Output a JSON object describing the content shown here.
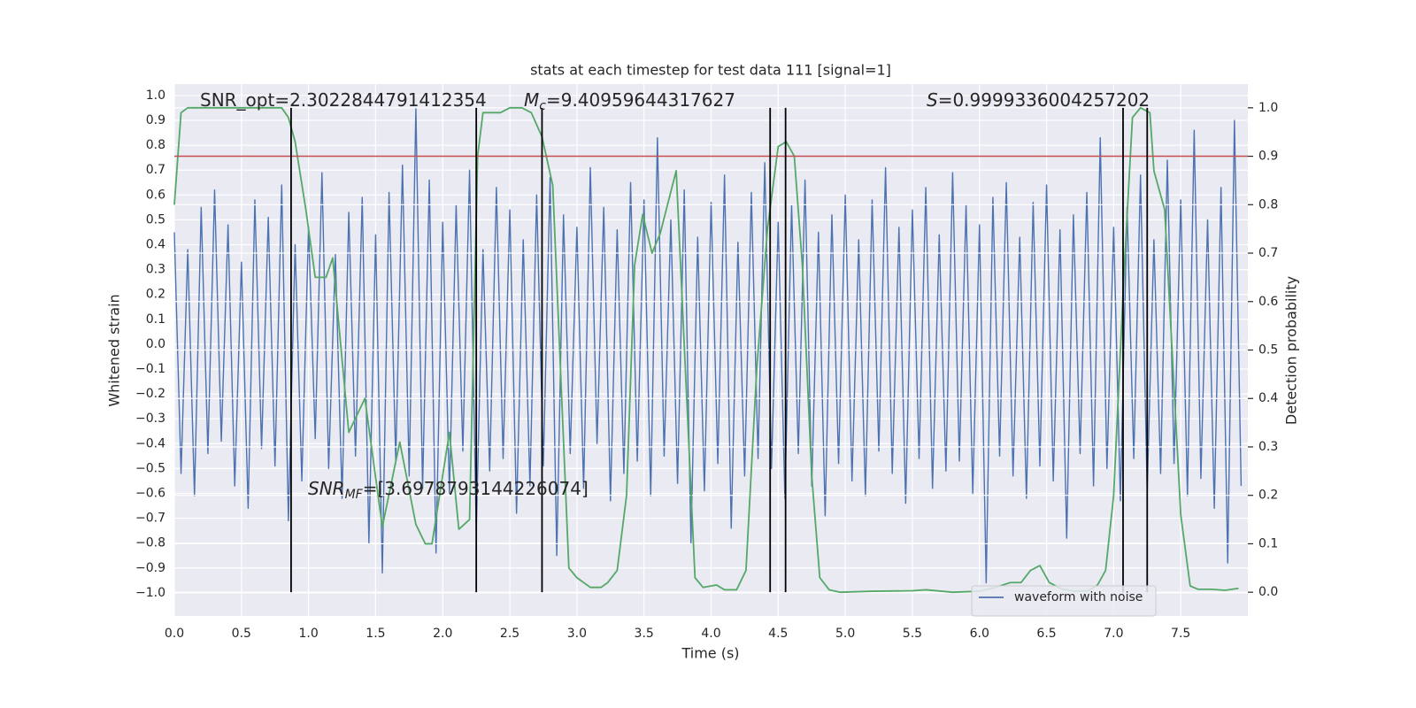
{
  "chart_data": {
    "type": "line",
    "title": "stats at each timestep for test data 111 [signal=1]",
    "xlabel": "Time (s)",
    "ylabel": "Whitened strain",
    "y2label": "Detection probability",
    "xlim": [
      0,
      8
    ],
    "ylim": [
      -1.093,
      1.046
    ],
    "y2lim": [
      -0.049,
      1.049
    ],
    "grid": true,
    "legend": "lower right",
    "xticks": [
      {
        "value": 0,
        "label": "0.0"
      },
      {
        "value": 0.5,
        "label": "0.5"
      },
      {
        "value": 1,
        "label": "1.0"
      },
      {
        "value": 1.5,
        "label": "1.5"
      },
      {
        "value": 2,
        "label": "2.0"
      },
      {
        "value": 2.5,
        "label": "2.5"
      },
      {
        "value": 3,
        "label": "3.0"
      },
      {
        "value": 3.5,
        "label": "3.5"
      },
      {
        "value": 4,
        "label": "4.0"
      },
      {
        "value": 4.5,
        "label": "4.5"
      },
      {
        "value": 5,
        "label": "5.0"
      },
      {
        "value": 5.5,
        "label": "5.5"
      },
      {
        "value": 6,
        "label": "6.0"
      },
      {
        "value": 6.5,
        "label": "6.5"
      },
      {
        "value": 7,
        "label": "7.0"
      },
      {
        "value": 7.5,
        "label": "7.5"
      }
    ],
    "yticks": [
      {
        "value": -1,
        "label": "−1.0"
      },
      {
        "value": -0.9,
        "label": "−0.9"
      },
      {
        "value": -0.8,
        "label": "−0.8"
      },
      {
        "value": -0.7,
        "label": "−0.7"
      },
      {
        "value": -0.6,
        "label": "−0.6"
      },
      {
        "value": -0.5,
        "label": "−0.5"
      },
      {
        "value": -0.4,
        "label": "−0.4"
      },
      {
        "value": -0.3,
        "label": "−0.3"
      },
      {
        "value": -0.2,
        "label": "−0.2"
      },
      {
        "value": -0.1,
        "label": "−0.1"
      },
      {
        "value": 0,
        "label": "0.0"
      },
      0.1,
      0.2,
      0.3,
      0.4,
      0.5,
      0.6,
      0.7,
      0.8,
      0.9,
      {
        "value": 1,
        "label": "1.0"
      }
    ],
    "y2ticks": [
      {
        "value": 0,
        "label": "0.0"
      },
      0.1,
      0.2,
      0.3,
      0.4,
      0.5,
      0.6,
      0.7,
      0.8,
      0.9,
      {
        "value": 1,
        "label": "1.0"
      }
    ],
    "series": [
      {
        "name": "waveform with noise",
        "color": "#4c72b0",
        "axis": "y",
        "x": [
          0,
          0.05,
          0.1,
          0.15,
          0.2,
          0.25,
          0.3,
          0.35,
          0.4,
          0.45,
          0.5,
          0.55,
          0.6,
          0.65,
          0.7,
          0.75,
          0.8,
          0.85,
          0.9,
          0.95,
          1,
          1.05,
          1.1,
          1.15,
          1.2,
          1.25,
          1.3,
          1.35,
          1.4,
          1.45,
          1.5,
          1.55,
          1.6,
          1.65,
          1.7,
          1.75,
          1.8,
          1.85,
          1.9,
          1.95,
          2,
          2.05,
          2.1,
          2.15,
          2.2,
          2.25,
          2.3,
          2.35,
          2.4,
          2.45,
          2.5,
          2.55,
          2.6,
          2.65,
          2.7,
          2.75,
          2.8,
          2.85,
          2.9,
          2.95,
          3,
          3.05,
          3.1,
          3.15,
          3.2,
          3.25,
          3.3,
          3.35,
          3.4,
          3.45,
          3.5,
          3.55,
          3.6,
          3.65,
          3.7,
          3.75,
          3.8,
          3.85,
          3.9,
          3.95,
          4,
          4.05,
          4.1,
          4.15,
          4.2,
          4.25,
          4.3,
          4.35,
          4.4,
          4.45,
          4.5,
          4.55,
          4.6,
          4.65,
          4.7,
          4.75,
          4.8,
          4.85,
          4.9,
          4.95,
          5,
          5.05,
          5.1,
          5.15,
          5.2,
          5.25,
          5.3,
          5.35,
          5.4,
          5.45,
          5.5,
          5.55,
          5.6,
          5.65,
          5.7,
          5.75,
          5.8,
          5.85,
          5.9,
          5.95,
          6,
          6.05,
          6.1,
          6.15,
          6.2,
          6.25,
          6.3,
          6.35,
          6.4,
          6.45,
          6.5,
          6.55,
          6.6,
          6.65,
          6.7,
          6.75,
          6.8,
          6.85,
          6.9,
          6.95,
          7,
          7.05,
          7.1,
          7.15,
          7.2,
          7.25,
          7.3,
          7.35,
          7.4,
          7.45,
          7.5,
          7.55,
          7.6,
          7.65,
          7.7,
          7.75,
          7.8,
          7.85,
          7.9,
          7.95
        ],
        "values": [
          0.45,
          -0.52,
          0.38,
          -0.61,
          0.55,
          -0.44,
          0.62,
          -0.39,
          0.48,
          -0.57,
          0.33,
          -0.66,
          0.58,
          -0.42,
          0.51,
          -0.49,
          0.64,
          -0.71,
          0.4,
          -0.55,
          0.47,
          -0.38,
          0.69,
          -0.5,
          0.36,
          -0.62,
          0.53,
          -0.45,
          0.59,
          -0.8,
          0.44,
          -0.92,
          0.61,
          -0.47,
          0.72,
          -0.53,
          0.95,
          -0.58,
          0.66,
          -0.84,
          0.49,
          -0.6,
          0.56,
          -0.43,
          0.7,
          -0.75,
          0.38,
          -0.51,
          0.63,
          -0.46,
          0.54,
          -0.68,
          0.42,
          -0.57,
          0.6,
          -0.49,
          0.67,
          -0.85,
          0.52,
          -0.44,
          0.47,
          -0.58,
          0.71,
          -0.4,
          0.55,
          -0.63,
          0.46,
          -0.52,
          0.65,
          -0.47,
          0.58,
          -0.61,
          0.83,
          -0.45,
          0.5,
          -0.56,
          0.62,
          -0.8,
          0.43,
          -0.59,
          0.57,
          -0.48,
          0.68,
          -0.74,
          0.41,
          -0.53,
          0.61,
          -0.46,
          0.73,
          -0.5,
          0.49,
          -0.62,
          0.56,
          -0.44,
          0.66,
          -0.57,
          0.45,
          -0.69,
          0.52,
          -0.48,
          0.6,
          -0.55,
          0.42,
          -0.61,
          0.58,
          -0.43,
          0.71,
          -0.52,
          0.47,
          -0.64,
          0.54,
          -0.46,
          0.63,
          -0.58,
          0.44,
          -0.51,
          0.69,
          -0.47,
          0.56,
          -0.6,
          0.48,
          -0.96,
          0.59,
          -0.45,
          0.65,
          -0.53,
          0.43,
          -0.62,
          0.57,
          -0.49,
          0.64,
          -0.55,
          0.46,
          -0.78,
          0.52,
          -0.44,
          0.61,
          -0.57,
          0.83,
          -0.5,
          0.47,
          -0.63,
          0.55,
          -0.46,
          0.68,
          -0.59,
          0.42,
          -0.52,
          0.74,
          -0.48,
          0.58,
          -0.61,
          0.86,
          -0.54,
          0.5,
          -0.66,
          0.63,
          -0.88,
          0.9,
          -0.57
        ]
      },
      {
        "color": "#55a868",
        "axis": "y2",
        "x": [
          0,
          0.05,
          0.1,
          0.2,
          0.3,
          0.4,
          0.5,
          0.6,
          0.7,
          0.8,
          0.85,
          0.9,
          0.98,
          1.05,
          1.13,
          1.18,
          1.3,
          1.42,
          1.55,
          1.68,
          1.8,
          1.87,
          1.92,
          2.05,
          2.12,
          2.2,
          2.26,
          2.3,
          2.43,
          2.5,
          2.59,
          2.66,
          2.74,
          2.82,
          2.94,
          3.0,
          3.1,
          3.18,
          3.23,
          3.3,
          3.37,
          3.43,
          3.49,
          3.56,
          3.62,
          3.74,
          3.88,
          3.94,
          4.04,
          4.1,
          4.19,
          4.26,
          4.34,
          4.42,
          4.5,
          4.56,
          4.62,
          4.68,
          4.75,
          4.81,
          4.88,
          4.96,
          5.2,
          5.5,
          5.6,
          5.8,
          6.0,
          6.12,
          6.23,
          6.31,
          6.38,
          6.45,
          6.52,
          6.61,
          6.71,
          6.81,
          6.88,
          6.94,
          7.0,
          7.08,
          7.14,
          7.2,
          7.27,
          7.3,
          7.38,
          7.5,
          7.57,
          7.63,
          7.73,
          7.83,
          7.93
        ],
        "values": [
          0.8,
          0.99,
          1,
          1,
          1,
          1,
          1,
          1,
          1,
          1,
          0.98,
          0.93,
          0.79,
          0.65,
          0.65,
          0.69,
          0.33,
          0.4,
          0.135,
          0.31,
          0.14,
          0.1,
          0.1,
          0.33,
          0.13,
          0.15,
          0.9,
          0.99,
          0.99,
          1.0,
          1.0,
          0.99,
          0.94,
          0.84,
          0.05,
          0.03,
          0.01,
          0.01,
          0.02,
          0.045,
          0.2,
          0.675,
          0.78,
          0.7,
          0.74,
          0.87,
          0.03,
          0.01,
          0.015,
          0.005,
          0.005,
          0.045,
          0.46,
          0.75,
          0.92,
          0.93,
          0.9,
          0.675,
          0.24,
          0.03,
          0.005,
          0.0,
          0.002,
          0.003,
          0.005,
          0.0,
          0.002,
          0.01,
          0.02,
          0.02,
          0.045,
          0.055,
          0.02,
          0.007,
          0.002,
          0.003,
          0.015,
          0.045,
          0.2,
          0.675,
          0.98,
          1.0,
          0.99,
          0.87,
          0.79,
          0.16,
          0.013,
          0.006,
          0.006,
          0.004,
          0.008
        ]
      }
    ],
    "hlines": [
      {
        "value": 0.9,
        "axis": "y2",
        "color": "#c44e52"
      }
    ],
    "vlines": {
      "x": [
        0.87,
        2.25,
        2.74,
        4.44,
        4.555,
        7.07,
        7.25
      ],
      "ymin": 0,
      "ymax": 1,
      "axis": "y2",
      "color": "#000000"
    },
    "annotations": [
      {
        "parts": [
          {
            "text": "SNR_opt=2.3022844791412354"
          }
        ]
      },
      {
        "parts": [
          {
            "text": "M",
            "style": "italic"
          },
          {
            "text": "c",
            "style": "italic-sub"
          },
          {
            "text": "=9.40959644317627"
          }
        ]
      },
      {
        "parts": [
          {
            "text": "S",
            "style": "italic"
          },
          {
            "text": "=0.9999336004257202"
          }
        ]
      },
      {
        "parts": [
          {
            "text": "SNR",
            "style": "italic"
          },
          {
            "text": "MF",
            "style": "italic-sub"
          },
          {
            "text": "=[3.6978793144226074]"
          }
        ]
      }
    ]
  }
}
